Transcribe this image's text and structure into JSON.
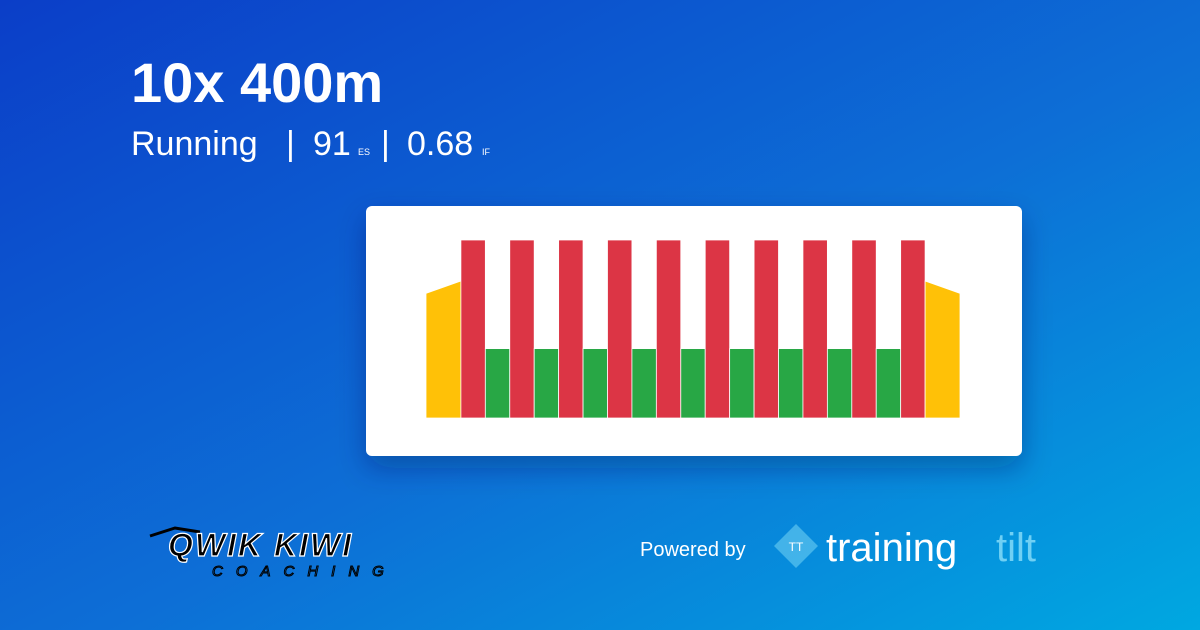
{
  "header": {
    "title": "10x 400m",
    "sport": "Running",
    "separator": "|",
    "stress": "91",
    "stress_unit": "ES",
    "intensity": "0.68",
    "intensity_unit": "IF"
  },
  "chart_data": {
    "type": "workout",
    "xlim": [
      0,
      153
    ],
    "ylim": [
      0,
      100
    ],
    "segments": [
      {
        "x": [
          0,
          10
        ],
        "values": [
          70,
          77
        ],
        "color": "#ffc107"
      },
      {
        "x": [
          10,
          17
        ],
        "values": [
          100,
          100
        ],
        "color": "#dc3545"
      },
      {
        "x": [
          17,
          24
        ],
        "values": [
          39,
          39
        ],
        "color": "#28a745"
      },
      {
        "x": [
          24,
          31
        ],
        "values": [
          100,
          100
        ],
        "color": "#dc3545"
      },
      {
        "x": [
          31,
          38
        ],
        "values": [
          39,
          39
        ],
        "color": "#28a745"
      },
      {
        "x": [
          38,
          45
        ],
        "values": [
          100,
          100
        ],
        "color": "#dc3545"
      },
      {
        "x": [
          45,
          52
        ],
        "values": [
          39,
          39
        ],
        "color": "#28a745"
      },
      {
        "x": [
          52,
          59
        ],
        "values": [
          100,
          100
        ],
        "color": "#dc3545"
      },
      {
        "x": [
          59,
          66
        ],
        "values": [
          39,
          39
        ],
        "color": "#28a745"
      },
      {
        "x": [
          66,
          73
        ],
        "values": [
          100,
          100
        ],
        "color": "#dc3545"
      },
      {
        "x": [
          73,
          80
        ],
        "values": [
          39,
          39
        ],
        "color": "#28a745"
      },
      {
        "x": [
          80,
          87
        ],
        "values": [
          100,
          100
        ],
        "color": "#dc3545"
      },
      {
        "x": [
          87,
          94
        ],
        "values": [
          39,
          39
        ],
        "color": "#28a745"
      },
      {
        "x": [
          94,
          101
        ],
        "values": [
          100,
          100
        ],
        "color": "#dc3545"
      },
      {
        "x": [
          101,
          108
        ],
        "values": [
          39,
          39
        ],
        "color": "#28a745"
      },
      {
        "x": [
          108,
          115
        ],
        "values": [
          100,
          100
        ],
        "color": "#dc3545"
      },
      {
        "x": [
          115,
          122
        ],
        "values": [
          39,
          39
        ],
        "color": "#28a745"
      },
      {
        "x": [
          122,
          129
        ],
        "values": [
          100,
          100
        ],
        "color": "#dc3545"
      },
      {
        "x": [
          129,
          136
        ],
        "values": [
          39,
          39
        ],
        "color": "#28a745"
      },
      {
        "x": [
          136,
          143
        ],
        "values": [
          100,
          100
        ],
        "color": "#dc3545"
      },
      {
        "x": [
          143,
          153
        ],
        "values": [
          77,
          70
        ],
        "color": "#ffc107"
      }
    ]
  },
  "footer": {
    "coach_name": "QWIK KIWI",
    "coach_tagline": "COACHING",
    "powered_by": "Powered by",
    "brand_icon": "TT",
    "brand_first": "training",
    "brand_second": "tilt"
  }
}
